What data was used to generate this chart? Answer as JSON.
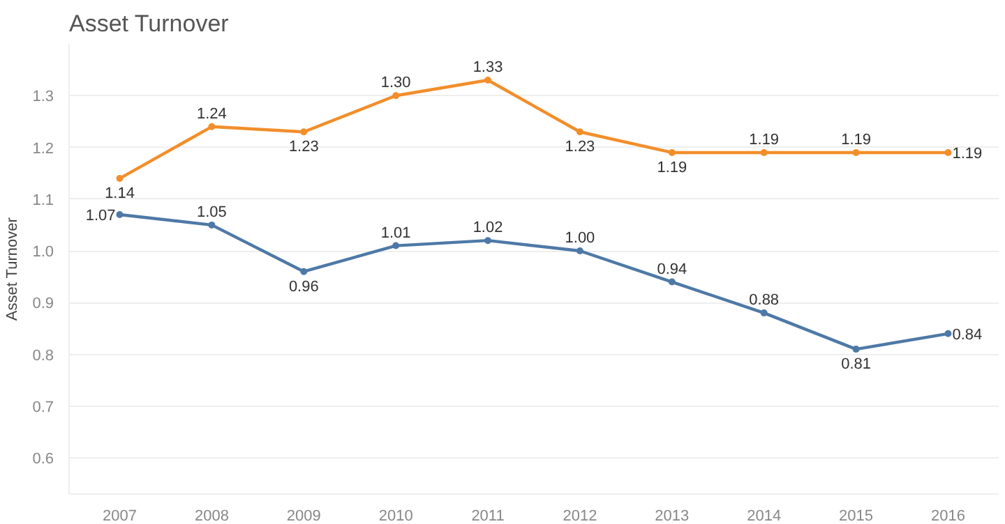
{
  "chart_data": {
    "type": "line",
    "title": "Asset Turnover",
    "ylabel": "Asset Turnover",
    "categories": [
      "2007",
      "2008",
      "2009",
      "2010",
      "2011",
      "2012",
      "2013",
      "2014",
      "2015",
      "2016"
    ],
    "series": [
      {
        "color": "#f28e2b",
        "values": [
          1.14,
          1.24,
          1.23,
          1.3,
          1.33,
          1.23,
          1.19,
          1.19,
          1.19,
          1.19
        ],
        "value_labels": [
          "1.14",
          "1.24",
          "1.23",
          "1.30",
          "1.33",
          "1.23",
          "1.19",
          "1.19",
          "1.19",
          "1.19"
        ]
      },
      {
        "color": "#4e79a7",
        "values": [
          1.07,
          1.05,
          0.96,
          1.01,
          1.02,
          1.0,
          0.94,
          0.88,
          0.81,
          0.84
        ],
        "value_labels": [
          "1.07",
          "1.05",
          "0.96",
          "1.01",
          "1.02",
          "1.00",
          "0.94",
          "0.88",
          "0.81",
          "0.84"
        ]
      }
    ],
    "ylim": [
      0.53,
      1.4
    ],
    "yticks": [
      {
        "value": 0.6,
        "label": "0.6"
      },
      {
        "value": 0.7,
        "label": "0.7"
      },
      {
        "value": 0.8,
        "label": "0.8"
      },
      {
        "value": 0.9,
        "label": "0.9"
      },
      {
        "value": 1.0,
        "label": "1.0"
      },
      {
        "value": 1.1,
        "label": "1.1"
      },
      {
        "value": 1.2,
        "label": "1.2"
      },
      {
        "value": 1.3,
        "label": "1.3"
      }
    ],
    "grid": "y",
    "marker": "circle",
    "line_style": "solid"
  }
}
